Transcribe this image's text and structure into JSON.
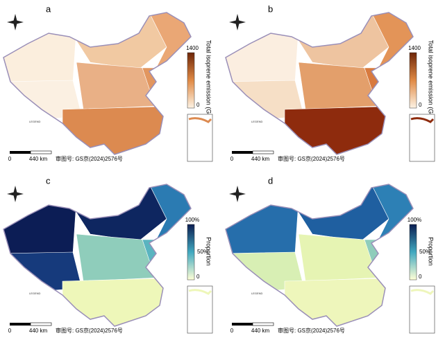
{
  "panels": [
    {
      "label": "a",
      "colorbar": {
        "title": "Total isoprene emission (Gg)",
        "top": "1400",
        "bottom": "0"
      },
      "legend": "LEGEND",
      "scale": {
        "zero": "0",
        "distance": "440 km"
      },
      "review_number": "审图号: GS京(2024)2576号"
    },
    {
      "label": "b",
      "colorbar": {
        "title": "Total isoprene emission (Gg)",
        "top": "1400",
        "bottom": "0"
      },
      "legend": "LEGEND",
      "scale": {
        "zero": "0",
        "distance": "440 km"
      },
      "review_number": "审图号: GS京(2024)2576号"
    },
    {
      "label": "c",
      "colorbar": {
        "title": "Proportion",
        "top": "100%",
        "middle": "50%",
        "bottom": "0"
      },
      "legend": "LEGEND",
      "scale": {
        "zero": "0",
        "distance": "440 km"
      },
      "review_number": "审图号: GS京(2024)2576号"
    },
    {
      "label": "d",
      "colorbar": {
        "title": "Proportion",
        "top": "100%",
        "middle": "50%",
        "bottom": "0"
      },
      "legend": "LEGEND",
      "scale": {
        "zero": "0",
        "distance": "440 km"
      },
      "review_number": "审图号: GS京(2024)2576号"
    }
  ]
}
